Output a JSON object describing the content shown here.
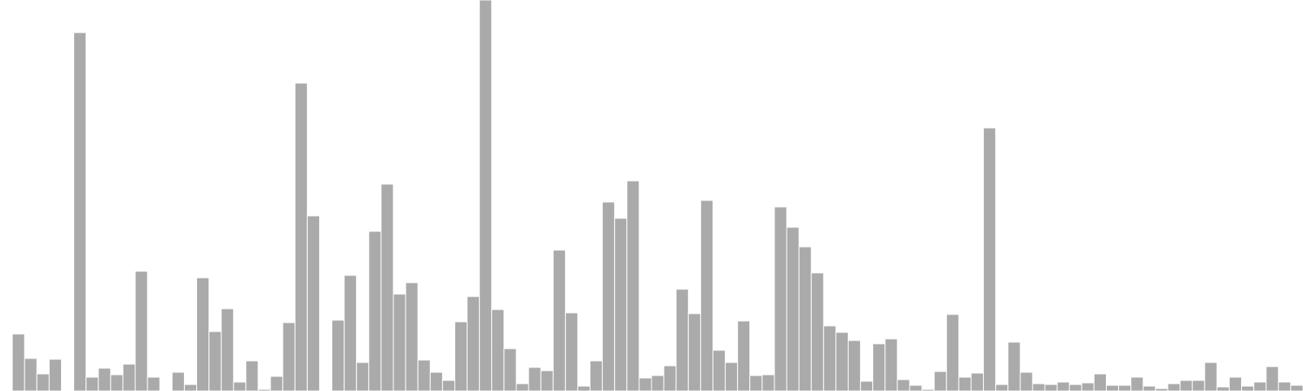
{
  "chart_data": {
    "type": "bar",
    "title": "",
    "xlabel": "",
    "ylabel": "",
    "ylim": [
      0,
      480
    ],
    "grid": false,
    "legend": "none",
    "bar_color": "#aaaaaa",
    "bar_edge_color": "#ffffff",
    "values": [
      0,
      70,
      40,
      21,
      39,
      0,
      440,
      17,
      28,
      20,
      33,
      147,
      17,
      0,
      23,
      8,
      139,
      73,
      101,
      11,
      37,
      2,
      18,
      84,
      378,
      215,
      0,
      87,
      142,
      35,
      196,
      254,
      119,
      133,
      38,
      23,
      13,
      85,
      116,
      480,
      100,
      52,
      9,
      29,
      25,
      173,
      96,
      6,
      37,
      232,
      212,
      258,
      16,
      19,
      31,
      125,
      95,
      234,
      50,
      35,
      86,
      19,
      20,
      226,
      201,
      177,
      145,
      80,
      72,
      62,
      12,
      58,
      64,
      14,
      7,
      2,
      24,
      94,
      17,
      22,
      323,
      8,
      60,
      23,
      9,
      8,
      11,
      8,
      10,
      21,
      7,
      7,
      17,
      6,
      3,
      9,
      13,
      13,
      35,
      5,
      17,
      6,
      11,
      30,
      11,
      7
    ]
  }
}
